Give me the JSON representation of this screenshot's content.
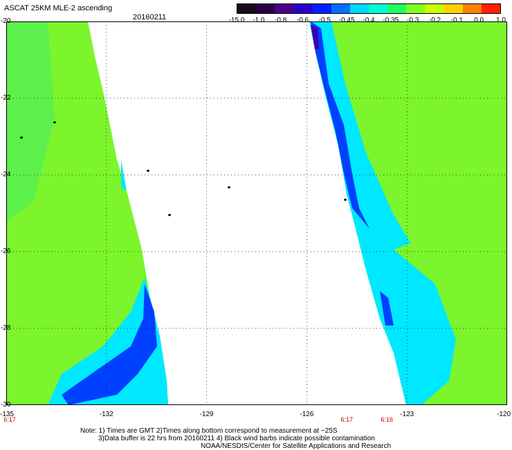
{
  "header": {
    "title": "ASCAT 25KM MLE-2 ascending",
    "date": "20160211"
  },
  "colorbar": {
    "labels": [
      "-15.0",
      "-1.0",
      "-0.8",
      "-0.6",
      "-0.5",
      "-0.45",
      "-0.4",
      "-0.35",
      "-0.3",
      "-0.2",
      "-0.1",
      "0.0",
      "1.0"
    ],
    "colors": [
      "#1a0a1a",
      "#2a0045",
      "#4b0082",
      "#2a00c8",
      "#0020ff",
      "#0070ff",
      "#00d8ff",
      "#00ffd0",
      "#20ff60",
      "#80ff20",
      "#c8ff00",
      "#ffd000",
      "#ff8000",
      "#ff2000"
    ]
  },
  "map": {
    "lon_range": [
      -135,
      -120
    ],
    "lat_range": [
      -30,
      -20
    ],
    "x_ticks": [
      "-135",
      "-132",
      "-129",
      "-126",
      "-123",
      "-120"
    ],
    "y_ticks": [
      "-20",
      "-22",
      "-24",
      "-26",
      "-28",
      "-30"
    ],
    "time_labels": [
      {
        "lon": -135,
        "text": "6:17"
      },
      {
        "lon": -124.8,
        "text": "6:17"
      },
      {
        "lon": -123.6,
        "text": "6:16"
      }
    ],
    "swath_colors": {
      "green": "#7cf52c",
      "green_dark": "#5ef04a",
      "cyan": "#00e8ff",
      "blue": "#0040ff",
      "purple": "#3a00b0"
    }
  },
  "notes": [
    "Note: 1) Times are GMT 2)Times along bottom correspond to measurement at ~25S",
    "3)Data buffer is 22 hrs from 20160211 4) Black wind barbs indicate possible contamination",
    "NOAA/NESDIS/Center for Satellite Applications and Research"
  ]
}
